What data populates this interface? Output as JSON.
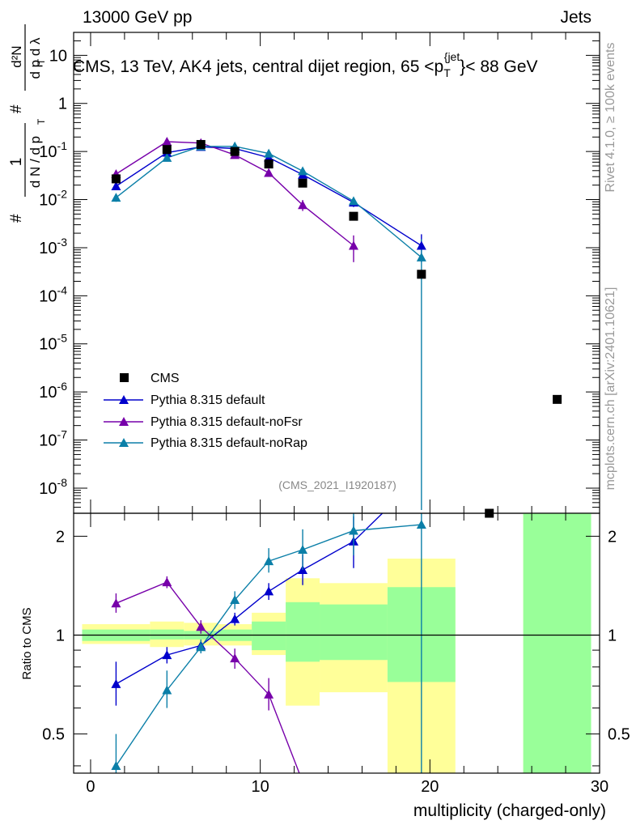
{
  "header": {
    "left": "13000 GeV pp",
    "right": "Jets",
    "side_rivet": "Rivet 4.1.0, ≥ 100k events",
    "side_mcplots": "mcplots.cern.ch [arXiv:2401.10621]"
  },
  "chart_data": [
    {
      "type": "scatter",
      "name": "main-panel",
      "title": "CMS, 13 TeV, AK4 jets, central dijet region, 65 < pT jet < 88 GeV",
      "ylabel": "(1/dN/dpT) d²N/dpT dλ",
      "yscale": "log",
      "xlim": [
        -1,
        30
      ],
      "ylim": [
        3e-09,
        30
      ],
      "y_ticks": [
        1e-08,
        1e-07,
        1e-06,
        1e-05,
        0.0001,
        0.001,
        0.01,
        0.1,
        1,
        10
      ],
      "y_tick_labels": [
        "10^-8",
        "10^-7",
        "10^-6",
        "10^-5",
        "10^-4",
        "10^-3",
        "10^-2",
        "10^-1",
        "1",
        "10"
      ],
      "reference_label": "(CMS_2021_I1920187)",
      "data": {
        "name": "CMS",
        "x": [
          1.5,
          4.5,
          6.5,
          8.5,
          10.5,
          12.5,
          15.5,
          19.5,
          23.5,
          27.5
        ],
        "y": [
          0.027,
          0.11,
          0.14,
          0.1,
          0.055,
          0.022,
          0.0045,
          0.00028,
          3e-09,
          7e-07
        ]
      },
      "series": [
        {
          "name": "Pythia 8.315 default",
          "color": "#0000cc",
          "x": [
            1.5,
            4.5,
            6.5,
            8.5,
            10.5,
            12.5,
            15.5,
            19.5
          ],
          "y": [
            0.019,
            0.095,
            0.125,
            0.115,
            0.075,
            0.033,
            0.0087,
            0.0011
          ],
          "err_low": [
            0.016,
            0.088,
            0.12,
            0.11,
            0.071,
            0.029,
            0.007,
            0.0005
          ],
          "err_high": [
            0.022,
            0.102,
            0.13,
            0.12,
            0.079,
            0.037,
            0.0105,
            0.0019
          ]
        },
        {
          "name": "Pythia 8.315 default-noFsr",
          "color": "#7700aa",
          "x": [
            1.5,
            4.5,
            6.5,
            8.5,
            10.5,
            12.5,
            15.5
          ],
          "y": [
            0.034,
            0.16,
            0.15,
            0.085,
            0.036,
            0.0077,
            0.0011
          ],
          "err_low": [
            0.03,
            0.152,
            0.143,
            0.08,
            0.032,
            0.0058,
            0.0005
          ],
          "err_high": [
            0.038,
            0.168,
            0.157,
            0.09,
            0.04,
            0.0098,
            0.0018
          ]
        },
        {
          "name": "Pythia 8.315 default-noRap",
          "color": "#0b7fa8",
          "x": [
            1.5,
            4.5,
            6.5,
            8.5,
            10.5,
            12.5,
            15.5,
            19.5
          ],
          "y": [
            0.011,
            0.074,
            0.128,
            0.128,
            0.091,
            0.039,
            0.0093,
            0.00063
          ],
          "err_low": [
            0.009,
            0.069,
            0.123,
            0.122,
            0.086,
            0.035,
            0.0078,
            3.5e-09
          ],
          "err_high": [
            0.013,
            0.079,
            0.133,
            0.134,
            0.096,
            0.044,
            0.011,
            0.0015
          ]
        }
      ]
    },
    {
      "type": "scatter",
      "name": "ratio-panel",
      "ylabel": "Ratio to CMS",
      "xlabel": "multiplicity (charged-only)",
      "yscale": "log",
      "xlim": [
        -1,
        30
      ],
      "ylim": [
        0.38,
        2.35
      ],
      "x_ticks": [
        0,
        10,
        20,
        30
      ],
      "y_ticks": [
        0.5,
        1,
        2
      ],
      "bands": {
        "bins": [
          [
            -0.5,
            3.5
          ],
          [
            3.5,
            5.5
          ],
          [
            5.5,
            7.5
          ],
          [
            7.5,
            9.5
          ],
          [
            9.5,
            11.5
          ],
          [
            11.5,
            13.5
          ],
          [
            13.5,
            17.5
          ],
          [
            17.5,
            21.5
          ],
          [
            25.5,
            29.5
          ]
        ],
        "stat_low": [
          0.96,
          0.97,
          0.97,
          0.96,
          0.9,
          0.83,
          0.84,
          0.72,
          0.2
        ],
        "stat_high": [
          1.04,
          1.04,
          1.03,
          1.04,
          1.1,
          1.26,
          1.24,
          1.4,
          3.0
        ],
        "total_low": [
          0.94,
          0.92,
          0.93,
          0.93,
          0.87,
          0.61,
          0.67,
          0.2,
          0.2
        ],
        "total_high": [
          1.08,
          1.1,
          1.09,
          1.08,
          1.17,
          1.49,
          1.44,
          1.71,
          3.0
        ]
      },
      "series": [
        {
          "name": "Pythia 8.315 default",
          "color": "#0000cc",
          "x": [
            1.5,
            4.5,
            6.5,
            8.5,
            10.5,
            12.5,
            15.5,
            17.2
          ],
          "y": [
            0.71,
            0.87,
            0.93,
            1.12,
            1.36,
            1.58,
            1.93,
            2.35
          ],
          "err_low": [
            0.61,
            0.82,
            0.9,
            1.07,
            1.28,
            1.42,
            1.6,
            null
          ],
          "err_high": [
            0.83,
            0.92,
            0.96,
            1.17,
            1.44,
            1.76,
            2.3,
            null
          ]
        },
        {
          "name": "Pythia 8.315 default-noFsr",
          "color": "#7700aa",
          "x": [
            1.5,
            4.5,
            6.5,
            8.5,
            10.5,
            12.3
          ],
          "y": [
            1.25,
            1.45,
            1.06,
            0.85,
            0.66,
            0.38
          ],
          "err_low": [
            1.17,
            1.39,
            1.01,
            0.79,
            0.59,
            null
          ],
          "err_high": [
            1.34,
            1.51,
            1.11,
            0.91,
            0.74,
            null
          ]
        },
        {
          "name": "Pythia 8.315 default-noRap",
          "color": "#0b7fa8",
          "x": [
            1.5,
            4.5,
            6.5,
            8.5,
            10.5,
            12.5,
            15.5,
            19.5
          ],
          "y": [
            0.4,
            0.68,
            0.92,
            1.28,
            1.68,
            1.82,
            2.08,
            2.17
          ],
          "err_low": [
            0.33,
            0.6,
            0.88,
            1.2,
            1.55,
            1.58,
            1.75,
            0.38
          ],
          "err_high": [
            0.5,
            0.78,
            0.97,
            1.36,
            1.84,
            2.1,
            2.35,
            2.35
          ]
        }
      ]
    }
  ]
}
